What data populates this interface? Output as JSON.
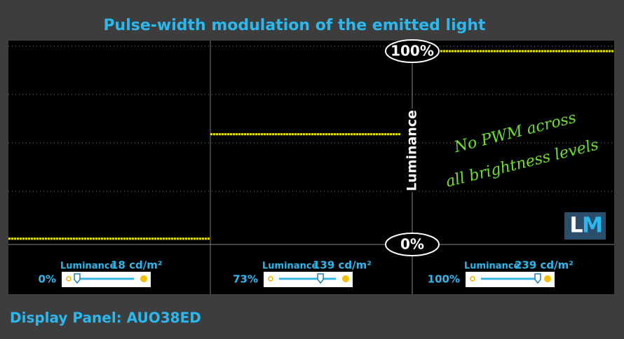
{
  "chart_data": {
    "type": "line",
    "title": "Pulse-width modulation of the emitted light",
    "y_label": "Luminance",
    "ylim": [
      0,
      100
    ],
    "yticks": [
      {
        "value": 0,
        "label": "0%"
      },
      {
        "value": 100,
        "label": "100%"
      }
    ],
    "series": [
      {
        "color": "#e6e600",
        "values": [
          3,
          57,
          100
        ]
      }
    ],
    "brightness": [
      {
        "value": 0,
        "label": "0%"
      },
      {
        "value": 73,
        "label": "73%"
      },
      {
        "value": 100,
        "label": "100%"
      }
    ],
    "luminance_label": [
      "Luminance",
      "Luminance",
      "Luminance"
    ],
    "luminance": [
      {
        "value": 18,
        "label": "18 cd/m²"
      },
      {
        "value": 139,
        "label": "139 cd/m²"
      },
      {
        "value": 239,
        "label": "239 cd/m²"
      }
    ],
    "annotation": [
      "No PWM across",
      "all brightness levels"
    ],
    "logo": [
      "L",
      "M"
    ],
    "footer": "Display Panel: AUO38ED"
  }
}
